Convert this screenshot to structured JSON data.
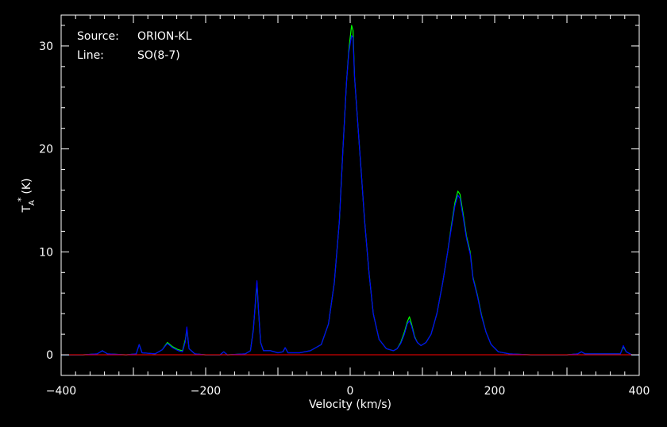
{
  "chart_data": {
    "type": "line",
    "title": "",
    "xlabel": "Velocity (km/s)",
    "ylabel": "T",
    "ylabel_sub": "A",
    "ylabel_sup": "*",
    "ylabel_unit": "(K)",
    "xlim": [
      -400,
      400
    ],
    "ylim": [
      -2,
      33
    ],
    "x_ticks": [
      -400,
      -200,
      0,
      200,
      400
    ],
    "y_ticks": [
      0,
      10,
      20,
      30
    ],
    "grid": false,
    "annotations": [
      {
        "key": "Source:",
        "value": "ORION-KL"
      },
      {
        "key": "Line:",
        "value": "SO(8-7)"
      }
    ],
    "series": [
      {
        "color": "#00ff00",
        "points": [
          [
            -400,
            0.0
          ],
          [
            -370,
            0.0
          ],
          [
            -350,
            0.1
          ],
          [
            -343,
            0.4
          ],
          [
            -336,
            0.1
          ],
          [
            -310,
            0.0
          ],
          [
            -296,
            0.1
          ],
          [
            -292,
            1.0
          ],
          [
            -288,
            0.2
          ],
          [
            -270,
            0.1
          ],
          [
            -260,
            0.5
          ],
          [
            -253,
            1.2
          ],
          [
            -246,
            0.8
          ],
          [
            -238,
            0.5
          ],
          [
            -232,
            0.4
          ],
          [
            -228,
            1.5
          ],
          [
            -226,
            2.5
          ],
          [
            -223,
            0.6
          ],
          [
            -215,
            0.1
          ],
          [
            -200,
            0.0
          ],
          [
            -180,
            0.0
          ],
          [
            -175,
            0.3
          ],
          [
            -170,
            0.0
          ],
          [
            -145,
            0.1
          ],
          [
            -138,
            0.4
          ],
          [
            -134,
            2.5
          ],
          [
            -131,
            5.2
          ],
          [
            -129,
            7.0
          ],
          [
            -127,
            4.5
          ],
          [
            -124,
            1.2
          ],
          [
            -120,
            0.4
          ],
          [
            -110,
            0.4
          ],
          [
            -100,
            0.2
          ],
          [
            -93,
            0.3
          ],
          [
            -90,
            0.7
          ],
          [
            -86,
            0.2
          ],
          [
            -70,
            0.2
          ],
          [
            -55,
            0.4
          ],
          [
            -40,
            1.0
          ],
          [
            -30,
            3.0
          ],
          [
            -22,
            7.0
          ],
          [
            -15,
            13.0
          ],
          [
            -10,
            20.0
          ],
          [
            -5,
            26.5
          ],
          [
            -2,
            29.5
          ],
          [
            0,
            30.8
          ],
          [
            2,
            32.0
          ],
          [
            4,
            31.5
          ],
          [
            6,
            27.0
          ],
          [
            10,
            23.0
          ],
          [
            15,
            18.0
          ],
          [
            20,
            13.0
          ],
          [
            26,
            8.0
          ],
          [
            32,
            4.0
          ],
          [
            40,
            1.5
          ],
          [
            50,
            0.6
          ],
          [
            60,
            0.4
          ],
          [
            65,
            0.6
          ],
          [
            70,
            1.2
          ],
          [
            75,
            2.2
          ],
          [
            79,
            3.2
          ],
          [
            82,
            3.7
          ],
          [
            85,
            3.0
          ],
          [
            89,
            1.8
          ],
          [
            93,
            1.2
          ],
          [
            98,
            0.9
          ],
          [
            105,
            1.2
          ],
          [
            112,
            2.0
          ],
          [
            120,
            4.0
          ],
          [
            128,
            7.0
          ],
          [
            135,
            10.0
          ],
          [
            140,
            12.5
          ],
          [
            145,
            14.8
          ],
          [
            149,
            15.9
          ],
          [
            152,
            15.6
          ],
          [
            156,
            13.8
          ],
          [
            161,
            11.5
          ],
          [
            166,
            10.0
          ],
          [
            170,
            7.5
          ],
          [
            176,
            5.8
          ],
          [
            182,
            3.8
          ],
          [
            188,
            2.2
          ],
          [
            195,
            1.0
          ],
          [
            205,
            0.3
          ],
          [
            220,
            0.1
          ],
          [
            250,
            0.0
          ],
          [
            300,
            0.0
          ],
          [
            315,
            0.1
          ],
          [
            320,
            0.3
          ],
          [
            325,
            0.1
          ],
          [
            360,
            0.1
          ],
          [
            374,
            0.1
          ],
          [
            378,
            0.8
          ],
          [
            382,
            0.3
          ],
          [
            390,
            0.0
          ],
          [
            400,
            0.0
          ]
        ]
      },
      {
        "color": "#0000ff",
        "points": [
          [
            -400,
            0.0
          ],
          [
            -370,
            0.0
          ],
          [
            -350,
            0.1
          ],
          [
            -343,
            0.4
          ],
          [
            -336,
            0.1
          ],
          [
            -310,
            0.0
          ],
          [
            -296,
            0.1
          ],
          [
            -292,
            1.0
          ],
          [
            -288,
            0.2
          ],
          [
            -270,
            0.1
          ],
          [
            -260,
            0.5
          ],
          [
            -253,
            1.1
          ],
          [
            -246,
            0.7
          ],
          [
            -238,
            0.4
          ],
          [
            -232,
            0.3
          ],
          [
            -228,
            1.3
          ],
          [
            -226,
            2.7
          ],
          [
            -223,
            0.6
          ],
          [
            -215,
            0.1
          ],
          [
            -200,
            0.0
          ],
          [
            -180,
            0.0
          ],
          [
            -175,
            0.3
          ],
          [
            -170,
            0.0
          ],
          [
            -145,
            0.1
          ],
          [
            -138,
            0.4
          ],
          [
            -134,
            2.4
          ],
          [
            -131,
            5.4
          ],
          [
            -129,
            7.2
          ],
          [
            -127,
            4.6
          ],
          [
            -124,
            1.2
          ],
          [
            -120,
            0.4
          ],
          [
            -110,
            0.4
          ],
          [
            -100,
            0.2
          ],
          [
            -93,
            0.3
          ],
          [
            -90,
            0.7
          ],
          [
            -86,
            0.2
          ],
          [
            -70,
            0.2
          ],
          [
            -55,
            0.4
          ],
          [
            -40,
            1.0
          ],
          [
            -30,
            3.0
          ],
          [
            -22,
            7.0
          ],
          [
            -15,
            13.0
          ],
          [
            -10,
            20.0
          ],
          [
            -5,
            26.5
          ],
          [
            -2,
            29.3
          ],
          [
            0,
            30.2
          ],
          [
            2,
            31.0
          ],
          [
            4,
            30.8
          ],
          [
            6,
            27.0
          ],
          [
            10,
            23.0
          ],
          [
            15,
            18.0
          ],
          [
            20,
            13.0
          ],
          [
            26,
            8.0
          ],
          [
            32,
            4.0
          ],
          [
            40,
            1.5
          ],
          [
            50,
            0.6
          ],
          [
            60,
            0.4
          ],
          [
            65,
            0.6
          ],
          [
            70,
            1.1
          ],
          [
            75,
            2.0
          ],
          [
            79,
            3.0
          ],
          [
            82,
            3.3
          ],
          [
            85,
            2.8
          ],
          [
            89,
            1.7
          ],
          [
            93,
            1.2
          ],
          [
            98,
            0.9
          ],
          [
            105,
            1.2
          ],
          [
            112,
            2.0
          ],
          [
            120,
            4.0
          ],
          [
            128,
            7.0
          ],
          [
            135,
            10.0
          ],
          [
            140,
            12.3
          ],
          [
            145,
            14.5
          ],
          [
            149,
            15.5
          ],
          [
            152,
            15.2
          ],
          [
            156,
            13.5
          ],
          [
            161,
            11.3
          ],
          [
            166,
            9.8
          ],
          [
            170,
            7.4
          ],
          [
            176,
            5.7
          ],
          [
            182,
            3.7
          ],
          [
            188,
            2.2
          ],
          [
            195,
            1.0
          ],
          [
            205,
            0.3
          ],
          [
            220,
            0.1
          ],
          [
            250,
            0.0
          ],
          [
            300,
            0.0
          ],
          [
            315,
            0.1
          ],
          [
            320,
            0.3
          ],
          [
            325,
            0.1
          ],
          [
            360,
            0.1
          ],
          [
            374,
            0.1
          ],
          [
            378,
            0.9
          ],
          [
            382,
            0.3
          ],
          [
            390,
            0.0
          ],
          [
            400,
            0.0
          ]
        ]
      }
    ],
    "baseline": {
      "value": 0,
      "color": "#ff0000"
    },
    "colors": {
      "background": "#000000",
      "axes": "#ffffff",
      "text": "#ffffff"
    }
  }
}
